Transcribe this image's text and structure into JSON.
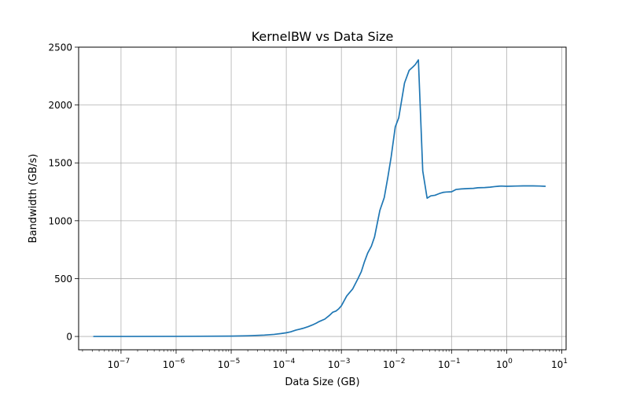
{
  "chart_data": {
    "type": "line",
    "title": "KernelBW vs Data Size",
    "xlabel": "Data Size (GB)",
    "ylabel": "Bandwidth (GB/s)",
    "xscale": "log",
    "xlim": [
      1.7e-08,
      12
    ],
    "ylim": [
      -115,
      2500
    ],
    "grid": true,
    "x_ticks": [
      {
        "value": 1e-07,
        "base": "10",
        "exp": "−7"
      },
      {
        "value": 1e-06,
        "base": "10",
        "exp": "−6"
      },
      {
        "value": 1e-05,
        "base": "10",
        "exp": "−5"
      },
      {
        "value": 0.0001,
        "base": "10",
        "exp": "−4"
      },
      {
        "value": 0.001,
        "base": "10",
        "exp": "−3"
      },
      {
        "value": 0.01,
        "base": "10",
        "exp": "−2"
      },
      {
        "value": 0.1,
        "base": "10",
        "exp": "−1"
      },
      {
        "value": 1,
        "base": "10",
        "exp": "0"
      },
      {
        "value": 10,
        "base": "10",
        "exp": "1"
      }
    ],
    "y_ticks": [
      {
        "value": 0,
        "label": "0"
      },
      {
        "value": 500,
        "label": "500"
      },
      {
        "value": 1000,
        "label": "1000"
      },
      {
        "value": 1500,
        "label": "1500"
      },
      {
        "value": 2000,
        "label": "2000"
      },
      {
        "value": 2500,
        "label": "2500"
      }
    ],
    "series": [
      {
        "color": "#1f77b4",
        "x": [
          3.2e-08,
          1e-07,
          1e-06,
          1e-05,
          2e-05,
          4e-05,
          6e-05,
          8e-05,
          0.0001,
          0.00012,
          0.00015,
          0.0002,
          0.00025,
          0.0003,
          0.00035,
          0.0004,
          0.0005,
          0.0006,
          0.0007,
          0.0008,
          0.0009,
          0.001,
          0.00125,
          0.0016,
          0.002,
          0.0023,
          0.0026,
          0.003,
          0.0035,
          0.004,
          0.005,
          0.006,
          0.007,
          0.008,
          0.0095,
          0.011,
          0.014,
          0.017,
          0.02,
          0.022,
          0.025,
          0.03,
          0.036,
          0.042,
          0.05,
          0.06,
          0.07,
          0.08,
          0.1,
          0.12,
          0.15,
          0.2,
          0.25,
          0.3,
          0.4,
          0.5,
          0.6,
          0.7,
          0.8,
          1,
          1.5,
          2,
          3,
          4,
          5
        ],
        "y": [
          0,
          0,
          1,
          3,
          6,
          12,
          18,
          25,
          32,
          40,
          55,
          70,
          85,
          100,
          115,
          130,
          150,
          180,
          210,
          220,
          240,
          265,
          350,
          410,
          500,
          560,
          640,
          720,
          780,
          860,
          1090,
          1200,
          1380,
          1550,
          1810,
          1890,
          2190,
          2300,
          2330,
          2350,
          2390,
          1430,
          1195,
          1215,
          1220,
          1235,
          1245,
          1248,
          1250,
          1270,
          1275,
          1278,
          1280,
          1285,
          1287,
          1290,
          1295,
          1298,
          1300,
          1298,
          1300,
          1301,
          1301,
          1300,
          1298
        ]
      }
    ]
  }
}
